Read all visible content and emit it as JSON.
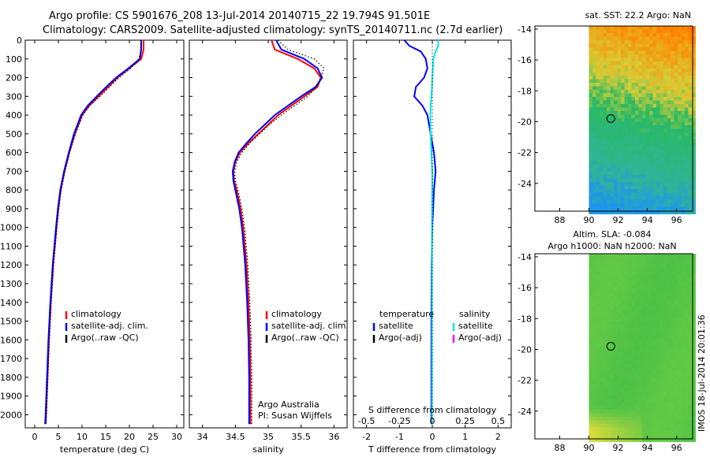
{
  "title_line1": "Argo profile: CS 5901676_208 13-Jul-2014 20140715_22 19.794S 91.501E",
  "title_line2": "Climatology: CARS2009. Satellite-adjusted climatology: synTS_20140711.nc (2.7d earlier)",
  "colors": {
    "red": "#ff0000",
    "blue": "#0000ff",
    "black": "#000000",
    "cyan": "#00e5e5",
    "magenta": "#ff00ff"
  },
  "side_text": "IMOS 18-Jul-2014 20:01:36",
  "chart_data": [
    {
      "type": "line",
      "id": "temperature",
      "xlabel": "temperature (deg C)",
      "xlim": [
        -2,
        31.5
      ],
      "xticks": [
        "0",
        "5",
        "10",
        "15",
        "20",
        "25",
        "30"
      ],
      "xtick_values": [
        0,
        5,
        10,
        15,
        20,
        25,
        30
      ],
      "ylim": [
        0,
        2070
      ],
      "yticks": [
        "0",
        "100",
        "200",
        "300",
        "400",
        "500",
        "600",
        "700",
        "800",
        "900",
        "1000",
        "1100",
        "1200",
        "1300",
        "1400",
        "1500",
        "1600",
        "1700",
        "1800",
        "1900",
        "2000"
      ],
      "ytick_values": [
        0,
        100,
        200,
        300,
        400,
        500,
        600,
        700,
        800,
        900,
        1000,
        1100,
        1200,
        1300,
        1400,
        1500,
        1600,
        1700,
        1800,
        1900,
        2000
      ],
      "legend": [
        "climatology",
        "satellite-adj. clim.",
        "Argo(..raw -QC)"
      ],
      "depth": [
        0,
        50,
        100,
        150,
        200,
        250,
        300,
        350,
        400,
        500,
        600,
        700,
        800,
        900,
        1000,
        1200,
        1400,
        1600,
        1800,
        2000,
        2050
      ],
      "series": [
        {
          "name": "climatology",
          "color": "red",
          "values": [
            23.0,
            23.0,
            22.5,
            20.0,
            17.5,
            15.5,
            13.5,
            11.5,
            10.0,
            8.5,
            7.3,
            6.3,
            5.5,
            5.0,
            4.6,
            3.9,
            3.4,
            3.0,
            2.7,
            2.4,
            2.3
          ]
        },
        {
          "name": "satellite-adj. clim.",
          "color": "blue",
          "values": [
            22.5,
            22.5,
            22.2,
            19.8,
            17.2,
            15.1,
            13.1,
            11.2,
            9.8,
            8.3,
            7.2,
            6.2,
            5.4,
            4.9,
            4.5,
            3.8,
            3.3,
            2.9,
            2.6,
            2.3,
            2.2
          ]
        },
        {
          "name": "Argo(..raw -QC)",
          "color": "black",
          "values": [
            22.4,
            22.4,
            22.0,
            20.3,
            17.8,
            15.8,
            13.8,
            11.6,
            10.2,
            8.6,
            7.4,
            6.4,
            5.6,
            5.1,
            4.7,
            4.0,
            3.5,
            3.1,
            2.8,
            2.5,
            2.4
          ]
        }
      ]
    },
    {
      "type": "line",
      "id": "salinity",
      "xlabel": "salinity",
      "xlim": [
        33.8,
        36.2
      ],
      "xticks": [
        "34",
        "34.5",
        "35",
        "35.5",
        "36"
      ],
      "xtick_values": [
        34,
        34.5,
        35,
        35.5,
        36
      ],
      "ylim": [
        0,
        2070
      ],
      "legend": [
        "climatology",
        "satellite-adj. clim.",
        "Argo(..raw -QC)"
      ],
      "annotation": [
        "Argo Australia",
        "PI: Susan Wijffels"
      ],
      "depth": [
        0,
        50,
        100,
        150,
        200,
        250,
        300,
        350,
        400,
        450,
        500,
        550,
        600,
        650,
        700,
        750,
        800,
        900,
        1000,
        1200,
        1400,
        1600,
        1800,
        2000,
        2050
      ],
      "series": [
        {
          "name": "climatology",
          "color": "red",
          "values": [
            35.05,
            35.1,
            35.45,
            35.7,
            35.8,
            35.75,
            35.55,
            35.35,
            35.15,
            35.0,
            34.85,
            34.7,
            34.57,
            34.5,
            34.47,
            34.48,
            34.52,
            34.58,
            34.62,
            34.67,
            34.7,
            34.72,
            34.73,
            34.73,
            34.73
          ]
        },
        {
          "name": "satellite-adj. clim.",
          "color": "blue",
          "values": [
            35.12,
            35.2,
            35.55,
            35.75,
            35.82,
            35.72,
            35.5,
            35.3,
            35.1,
            34.95,
            34.8,
            34.67,
            34.55,
            34.49,
            34.46,
            34.47,
            34.5,
            34.56,
            34.6,
            34.65,
            34.68,
            34.7,
            34.71,
            34.71,
            34.71
          ]
        },
        {
          "name": "Argo(..raw -QC)",
          "color": "black",
          "values": [
            35.15,
            35.3,
            35.7,
            35.85,
            35.8,
            35.73,
            35.6,
            35.4,
            35.2,
            35.02,
            34.87,
            34.72,
            34.6,
            34.52,
            34.49,
            34.5,
            34.54,
            34.6,
            34.64,
            34.69,
            34.72,
            34.74,
            34.75,
            34.75,
            34.75
          ]
        }
      ]
    },
    {
      "type": "line",
      "id": "difference",
      "xlabel": "T difference from climatology",
      "top_xlabel": "S difference from climatology",
      "xlim": [
        -2.4,
        2.4
      ],
      "xticks": [
        "-2",
        "-1",
        "0",
        "1",
        "2"
      ],
      "xtick_values": [
        -2,
        -1,
        0,
        1,
        2
      ],
      "s_xticks": [
        "-0.5",
        "-0.25",
        "0",
        "0.25",
        "0.5"
      ],
      "s_xtick_values": [
        -0.5,
        -0.25,
        0,
        0.25,
        0.5
      ],
      "ylim": [
        0,
        2070
      ],
      "legend_temperature": [
        "temperature",
        "satellite",
        "Argo(-adj)"
      ],
      "legend_salinity": [
        "salinity",
        "satellite",
        "Argo(-adj)"
      ],
      "depth": [
        0,
        30,
        60,
        100,
        150,
        200,
        250,
        300,
        350,
        400,
        500,
        600,
        700,
        800,
        1000,
        1200,
        1500,
        1800,
        2000,
        2050
      ],
      "series": [
        {
          "name": "temperature satellite",
          "color": "blue",
          "values": [
            -0.85,
            -0.7,
            -0.35,
            -0.2,
            -0.15,
            -0.25,
            -0.5,
            -0.55,
            -0.3,
            -0.15,
            -0.05,
            0.05,
            0.1,
            0.05,
            0.0,
            -0.02,
            -0.03,
            -0.03,
            -0.03,
            -0.03
          ]
        },
        {
          "name": "salinity satellite",
          "color": "cyan",
          "values": [
            0.18,
            0.18,
            0.1,
            0.03,
            0.02,
            0.0,
            -0.01,
            -0.03,
            -0.05,
            -0.06,
            -0.05,
            -0.03,
            0.0,
            0.0,
            -0.01,
            -0.01,
            -0.01,
            -0.01,
            -0.01,
            -0.01
          ]
        }
      ]
    },
    {
      "type": "heatmap",
      "id": "sst_map",
      "title": "sat. SST: 22.2  Argo: NaN",
      "xlim": [
        86.3,
        97.1
      ],
      "ylim": [
        -25.8,
        -13.8
      ],
      "xticks": [
        "88",
        "90",
        "92",
        "94",
        "96"
      ],
      "xtick_values": [
        88,
        90,
        92,
        94,
        96
      ],
      "yticks": [
        "-14",
        "-16",
        "-18",
        "-20",
        "-22",
        "-24"
      ],
      "ytick_values": [
        -14,
        -16,
        -18,
        -20,
        -22,
        -24
      ],
      "data_lon_min": 90,
      "marker": {
        "lon": 91.5,
        "lat": -19.8
      }
    },
    {
      "type": "heatmap",
      "id": "sla_map",
      "title_line1": "Altim. SLA: -0.084",
      "title_line2": "Argo h1000: NaN h2000: NaN",
      "xlim": [
        86.3,
        97.1
      ],
      "ylim": [
        -25.8,
        -13.8
      ],
      "xticks": [
        "88",
        "90",
        "92",
        "94",
        "96"
      ],
      "xtick_values": [
        88,
        90,
        92,
        94,
        96
      ],
      "yticks": [
        "-14",
        "-16",
        "-18",
        "-20",
        "-22",
        "-24"
      ],
      "ytick_values": [
        -14,
        -16,
        -18,
        -20,
        -22,
        -24
      ],
      "data_lon_min": 90,
      "marker": {
        "lon": 91.5,
        "lat": -19.8
      }
    }
  ]
}
